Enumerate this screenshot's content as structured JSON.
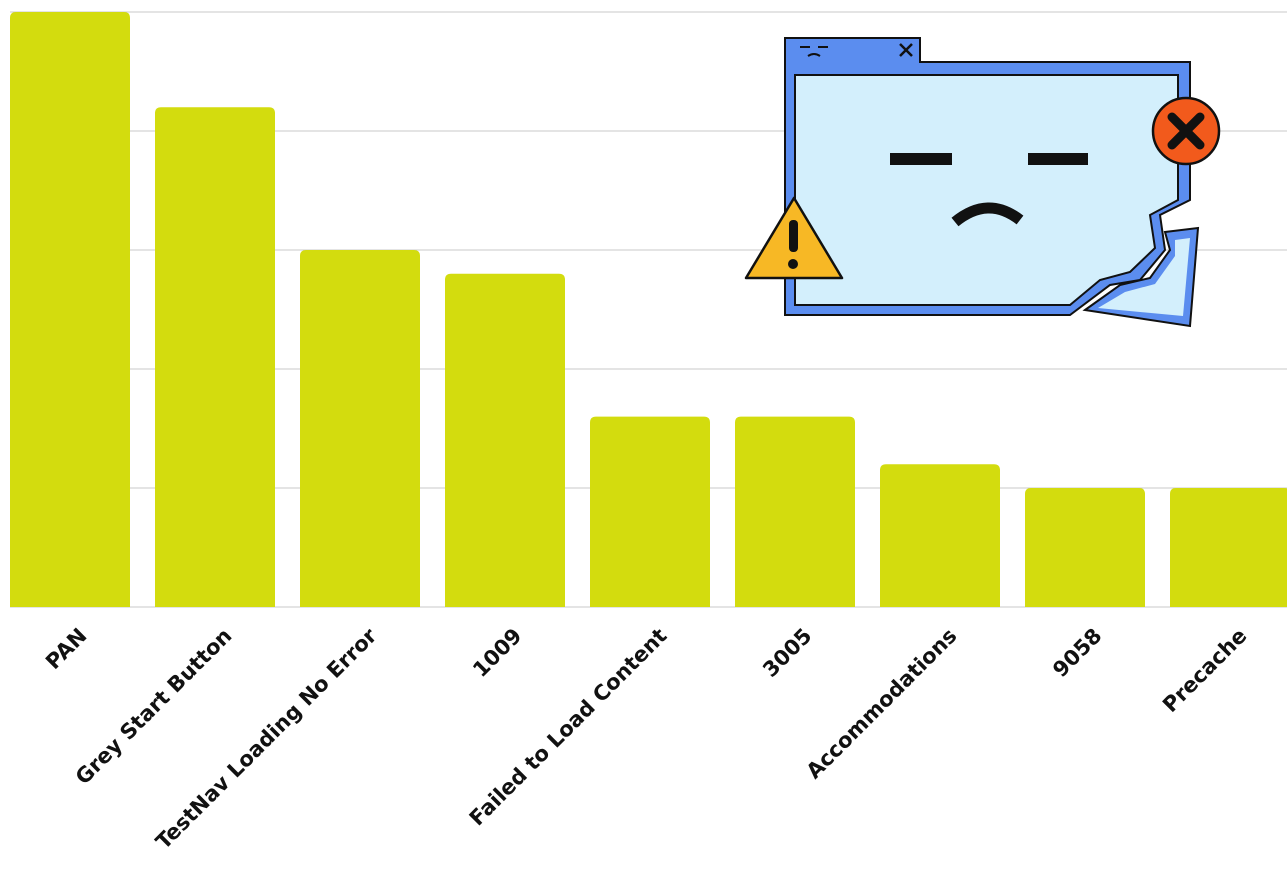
{
  "chart_data": {
    "type": "bar",
    "categories": [
      "PAN",
      "Grey Start Button",
      "TestNav Loading No Error",
      "1009",
      "Failed to Load Content",
      "3005",
      "Accommodations",
      "9058",
      "Precache"
    ],
    "values": [
      25,
      21,
      15,
      14,
      8,
      8,
      6,
      5,
      5
    ],
    "color": "#d3dc0e",
    "ylim": [
      0,
      25
    ],
    "yticks": [
      0,
      5,
      10,
      15,
      20,
      25
    ],
    "grid": true
  }
}
